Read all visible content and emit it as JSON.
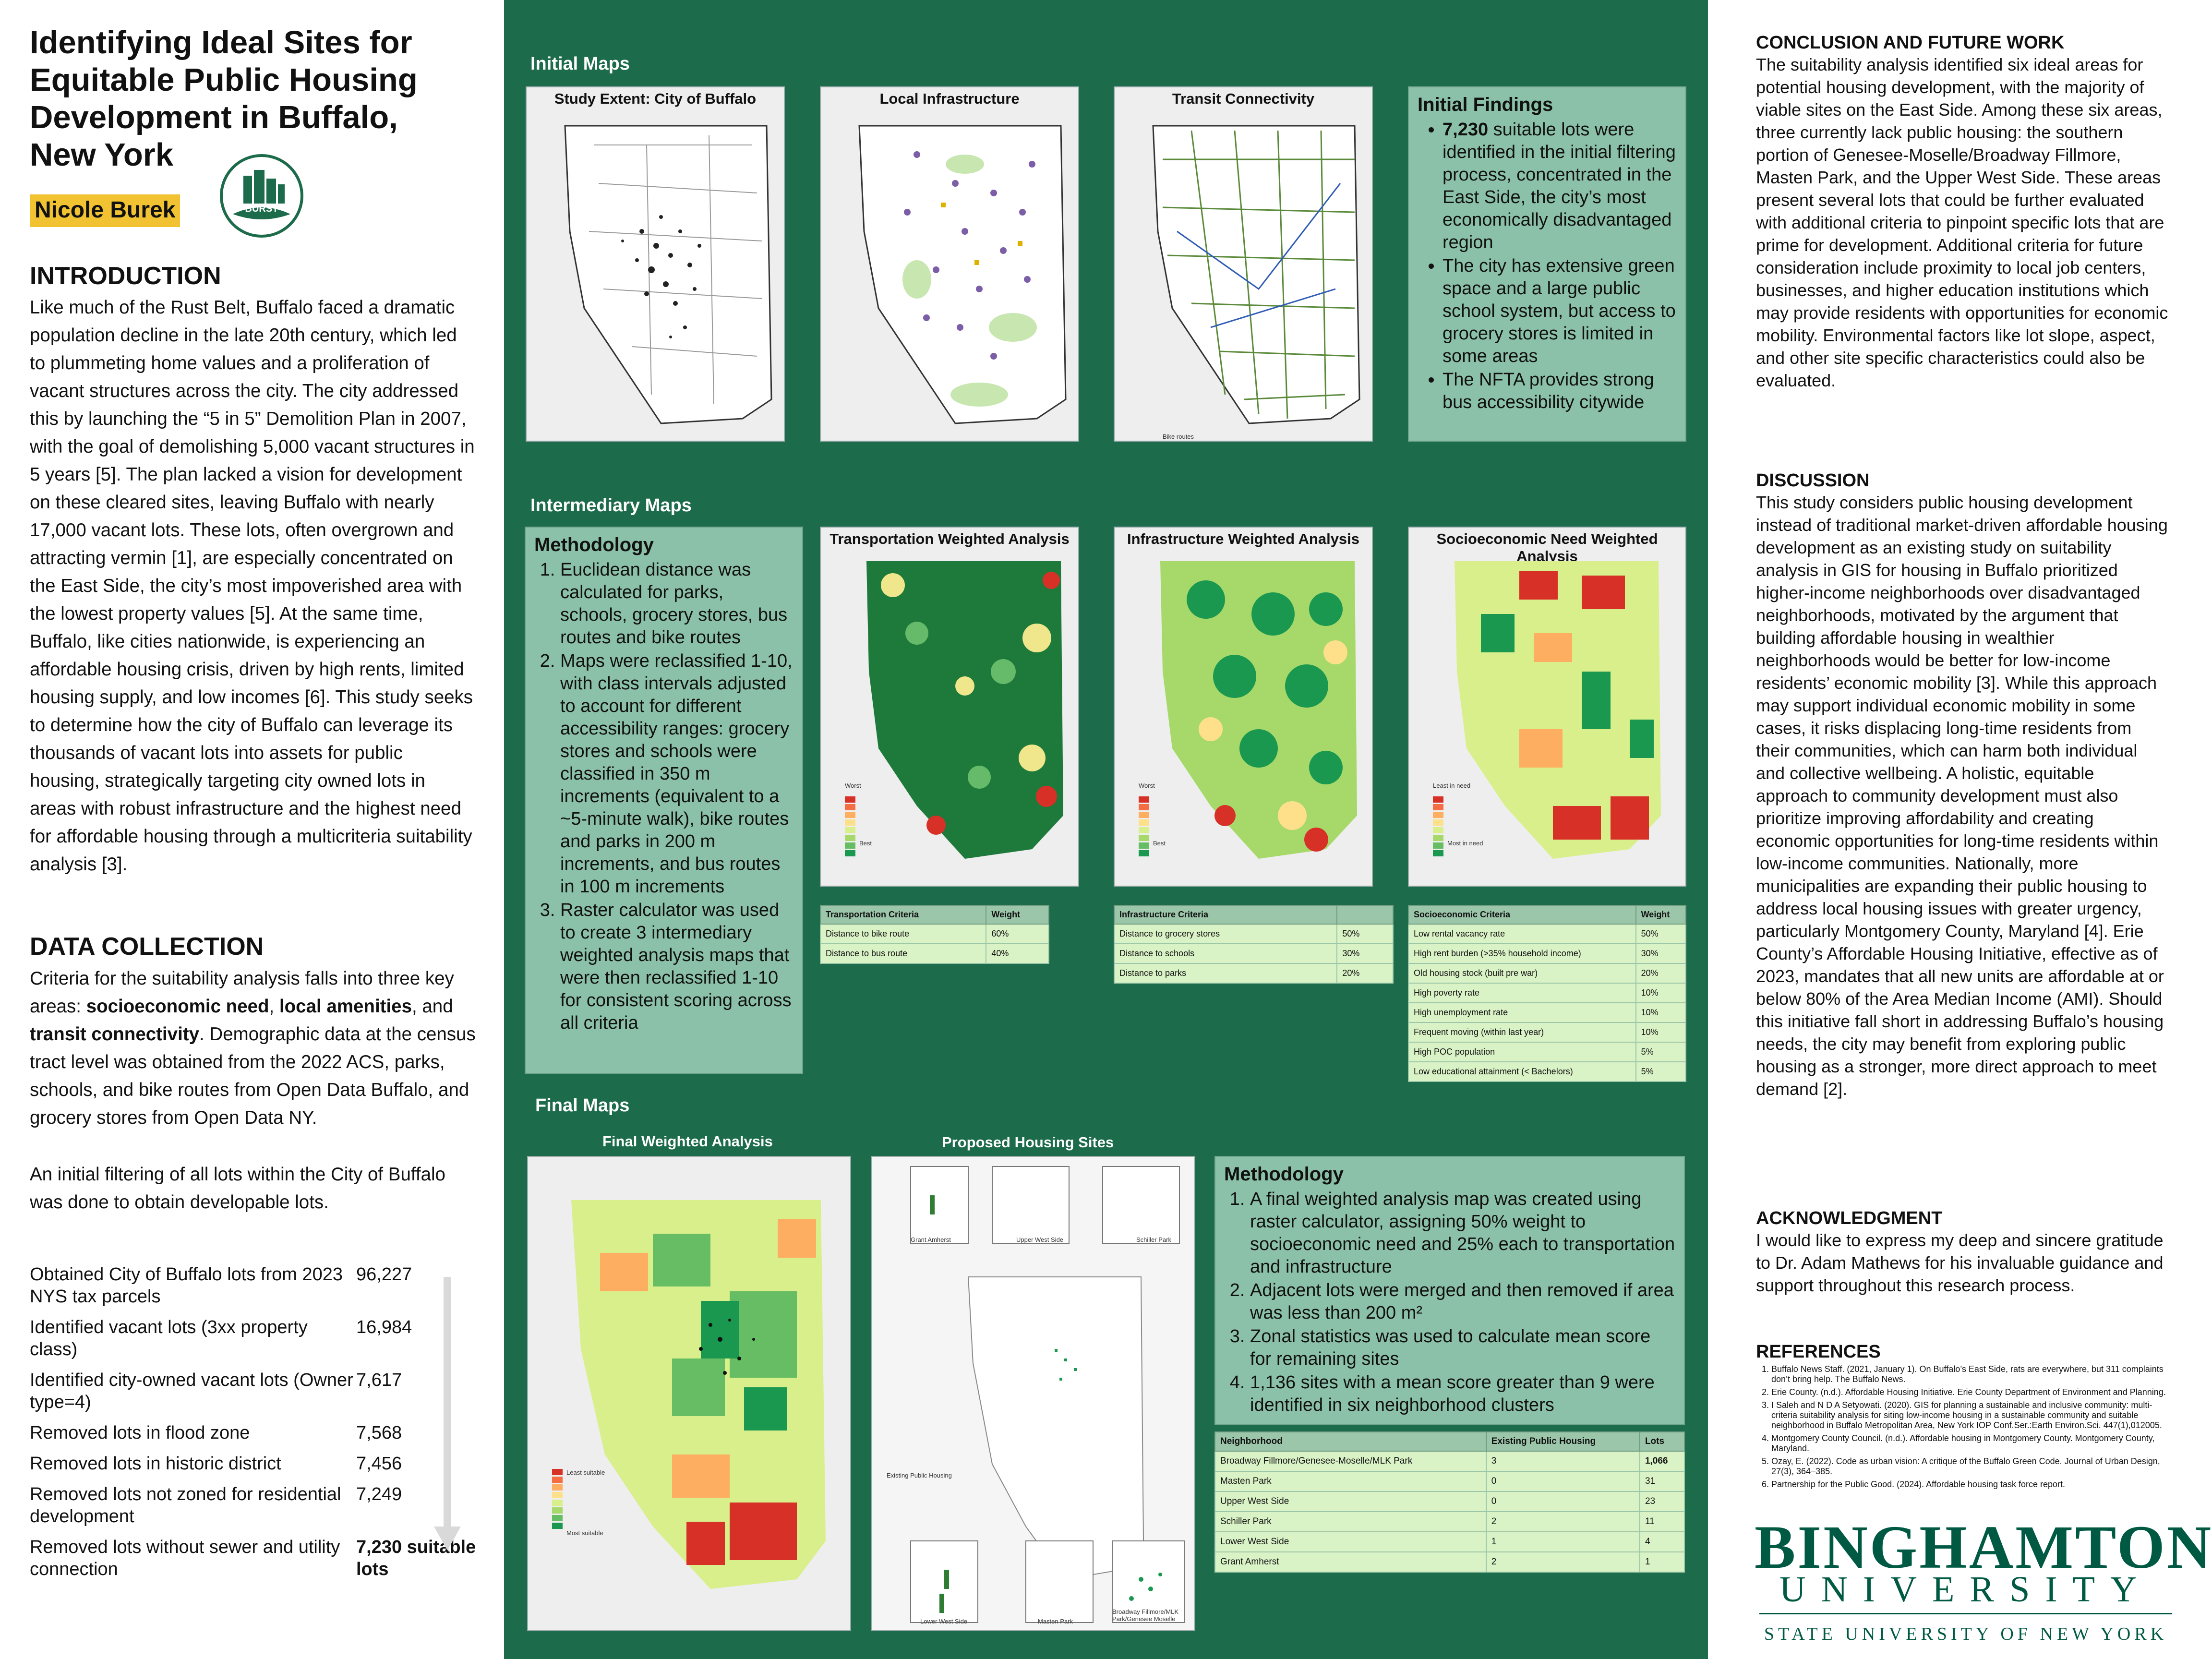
{
  "poster": {
    "title": "Identifying Ideal Sites for Equitable Public Housing Development in Buffalo, New York",
    "author": "Nicole Burek",
    "logo_text": "BURST"
  },
  "introduction": {
    "heading": "INTRODUCTION",
    "body": "Like much of the Rust Belt, Buffalo faced a dramatic population decline in the late 20th century, which led to plummeting home values and a proliferation of vacant structures across the city. The city addressed this by launching the “5 in 5” Demolition Plan in 2007, with the goal of demolishing 5,000 vacant structures in 5 years [5]. The plan lacked a vision for development on these cleared sites, leaving Buffalo with nearly 17,000 vacant lots. These lots, often overgrown and attracting vermin [1], are especially concentrated on the East Side, the city’s most impoverished area with the lowest property values [5]. At the same time, Buffalo, like cities nationwide, is experiencing an affordable housing crisis, driven by high rents, limited housing supply, and low incomes [6]. This study seeks to determine how the city of Buffalo can leverage its thousands of vacant lots into assets for public housing, strategically targeting city owned lots in areas with robust infrastructure and the highest need for affordable housing through a multicriteria suitability analysis [3]."
  },
  "data_collection": {
    "heading": "DATA COLLECTION",
    "p1_a": "Criteria for the suitability analysis falls into three key areas: ",
    "p1_b1": "socioeconomic need",
    "p1_c": ", ",
    "p1_b2": "local amenities",
    "p1_d": ", and ",
    "p1_b3": "transit connectivity",
    "p1_e": ". Demographic data at the census tract level was obtained from the 2022 ACS, parks, schools, and bike routes from Open Data Buffalo, and grocery stores from Open Data NY.",
    "p2": "An initial filtering of all lots within the City of Buffalo was done to obtain developable lots.",
    "steps": [
      {
        "label": "Obtained City of Buffalo lots from 2023 NYS tax parcels",
        "value": "96,227"
      },
      {
        "label": "Identified vacant lots (3xx property class)",
        "value": "16,984"
      },
      {
        "label": "Identified city-owned vacant lots (Owner type=4)",
        "value": "7,617"
      },
      {
        "label": "Removed lots in flood zone",
        "value": "7,568"
      },
      {
        "label": "Removed lots in historic district",
        "value": "7,456"
      },
      {
        "label": "Removed lots not zoned for residential development",
        "value": "7,249"
      },
      {
        "label": "Removed lots without sewer and utility connection",
        "value": "7,230 suitable lots"
      }
    ]
  },
  "initial_maps": {
    "heading": "Initial Maps",
    "maps": [
      "Study Extent: City of Buffalo",
      "Local Infrastructure",
      "Transit Connectivity"
    ],
    "bike_label": "Bike routes",
    "findings_title": "Initial Findings",
    "findings": [
      {
        "bold": "7,230",
        "text": " suitable lots were identified in the initial filtering process, concentrated in the East Side, the city’s most economically disadvantaged region"
      },
      {
        "bold": "",
        "text": "The city has extensive green space and a large public school system, but access to grocery stores is limited in some areas"
      },
      {
        "bold": "",
        "text": "The NFTA provides strong bus accessibility citywide"
      }
    ]
  },
  "intermediary_maps": {
    "heading": "Intermediary  Maps",
    "methodology_title": "Methodology",
    "methodology": [
      "Euclidean distance was calculated for parks, schools, grocery stores, bus routes and bike routes",
      "Maps were reclassified 1-10, with class intervals adjusted to account for different accessibility ranges: grocery stores and schools were classified in 350 m increments (equivalent to a ~5-minute walk), bike routes and parks in 200 m increments, and bus routes in 100 m increments",
      "Raster calculator was used to create 3 intermediary weighted analysis maps that were then reclassified 1-10 for consistent scoring across all criteria"
    ],
    "maps": [
      "Transportation Weighted Analysis",
      "Infrastructure Weighted Analysis",
      "Socioeconomic Need Weighted Analysis"
    ],
    "legend_worst": "Worst",
    "legend_best": "Best",
    "legend_least": "Least in need",
    "legend_most": "Most in need",
    "transport_table": {
      "headers": [
        "Transportation Criteria",
        "Weight"
      ],
      "rows": [
        [
          "Distance to bike route",
          "60%"
        ],
        [
          "Distance to bus route",
          "40%"
        ]
      ]
    },
    "infra_table": {
      "headers": [
        "Infrastructure Criteria",
        ""
      ],
      "rows": [
        [
          "Distance to grocery stores",
          "50%"
        ],
        [
          "Distance to schools",
          "30%"
        ],
        [
          "Distance to parks",
          "20%"
        ]
      ]
    },
    "socio_table": {
      "headers": [
        "Socioeconomic Criteria",
        "Weight"
      ],
      "rows": [
        [
          "Low rental vacancy rate",
          "50%"
        ],
        [
          "High rent burden (>35% household income)",
          "30%"
        ],
        [
          "Old housing stock (built pre war)",
          "20%"
        ],
        [
          "High poverty rate",
          "10%"
        ],
        [
          "High unemployment rate",
          "10%"
        ],
        [
          "Frequent moving (within last year)",
          "10%"
        ],
        [
          "High POC population",
          "5%"
        ],
        [
          "Low educational attainment (< Bachelors)",
          "5%"
        ]
      ]
    }
  },
  "final_maps": {
    "heading": "Final Maps",
    "maps": [
      "Final Weighted Analysis",
      "Proposed Housing Sites"
    ],
    "legend_least": "Least suitable",
    "legend_most": "Most suitable",
    "existing_label": "Existing Public Housing",
    "insets": [
      "Grant Amherst",
      "Upper West Side",
      "Schiller Park",
      "Lower West Side",
      "Masten Park",
      "Broadway Fillmore/MLK Park/Genesee Moselle"
    ],
    "methodology_title": "Methodology",
    "methodology": [
      "A final weighted analysis map was created using raster calculator, assigning 50% weight to socioeconomic need and 25% each to transportation and infrastructure",
      "Adjacent lots were merged and then removed if area was less than 200 m²",
      "Zonal statistics was used to calculate mean score for remaining sites",
      "1,136 sites with a mean score greater than 9 were identified in six neighborhood clusters"
    ],
    "table": {
      "headers": [
        "Neighborhood",
        "Existing Public Housing",
        "Lots"
      ],
      "rows": [
        [
          "Broadway Fillmore/Genesee-Moselle/MLK Park",
          "3",
          "1,066"
        ],
        [
          "Masten Park",
          "0",
          "31"
        ],
        [
          "Upper West Side",
          "0",
          "23"
        ],
        [
          "Schiller Park",
          "2",
          "11"
        ],
        [
          "Lower West Side",
          "1",
          "4"
        ],
        [
          "Grant Amherst",
          "2",
          "1"
        ]
      ]
    }
  },
  "conclusion": {
    "heading": "CONCLUSION AND FUTURE WORK",
    "body": "The suitability analysis identified six ideal areas for potential housing development, with the majority of viable sites on the East Side. Among these six areas, three currently lack public housing: the southern portion of Genesee-Moselle/Broadway Fillmore, Masten Park, and the Upper West Side. These areas present several lots that could be further evaluated with additional criteria to pinpoint specific lots that are prime for development. Additional criteria for future consideration include proximity to local job centers, businesses, and higher education institutions which may provide residents with opportunities for economic mobility. Environmental factors like lot slope, aspect, and other site specific characteristics could also be evaluated."
  },
  "discussion": {
    "heading": "DISCUSSION",
    "body": "This study considers public housing development instead of traditional market-driven affordable housing development as an existing study on suitability analysis in GIS for housing in Buffalo prioritized higher-income neighborhoods over disadvantaged neighborhoods, motivated by the argument that building affordable housing in wealthier neighborhoods would be better for low-income residents’ economic mobility [3]. While this approach may support individual economic mobility in some cases, it risks displacing long-time residents from their communities, which can harm both individual and collective wellbeing. A holistic, equitable approach to community development must also prioritize improving affordability and creating economic opportunities for long-time residents within low-income communities. Nationally, more municipalities are expanding their public housing to address local housing issues with greater urgency, particularly Montgomery County, Maryland [4]. Erie County’s Affordable Housing Initiative, effective as of 2023, mandates that all new units are affordable at or below 80% of the Area Median Income (AMI). Should this initiative fall short in addressing Buffalo’s housing needs, the city may benefit from exploring public housing as a stronger, more direct approach to meet demand [2]."
  },
  "acknowledgment": {
    "heading": "ACKNOWLEDGMENT",
    "body": "I would like to express my deep and sincere gratitude to Dr. Adam Mathews for his invaluable guidance and support throughout this research process."
  },
  "references": {
    "heading": "REFERENCES",
    "items": [
      "Buffalo News Staff. (2021, January 1). On Buffalo’s East Side, rats are everywhere, but 311 complaints don’t bring help. The Buffalo News.",
      "Erie County. (n.d.). Affordable Housing Initiative. Erie County Department of Environment and Planning.",
      "I Saleh and N D A Setyowati. (2020). GIS for planning a sustainable and inclusive community: multi-criteria suitability analysis for siting low-income housing in a sustainable community and suitable neighborhood in Buffalo Metropolitan Area, New York IOP Conf.Ser.:Earth Environ.Sci. 447(1),012005.",
      "Montgomery County Council. (n.d.). Affordable housing in Montgomery County. Montgomery County, Maryland.",
      "Ozay, E. (2022). Code as urban vision: A critique of the Buffalo Green Code. Journal of Urban Design, 27(3), 364–385.",
      "Partnership for the Public Good. (2024). Affordable housing task force report."
    ]
  },
  "university": {
    "name": "BINGHAMTON",
    "line2": "UNIVERSITY",
    "line3": "STATE UNIVERSITY OF NEW YORK"
  },
  "colors": {
    "poster_green": "#1c6b4b",
    "box_green": "#8bc1a8",
    "highlight": "#f1c232",
    "binghamton_green": "#005a43"
  }
}
